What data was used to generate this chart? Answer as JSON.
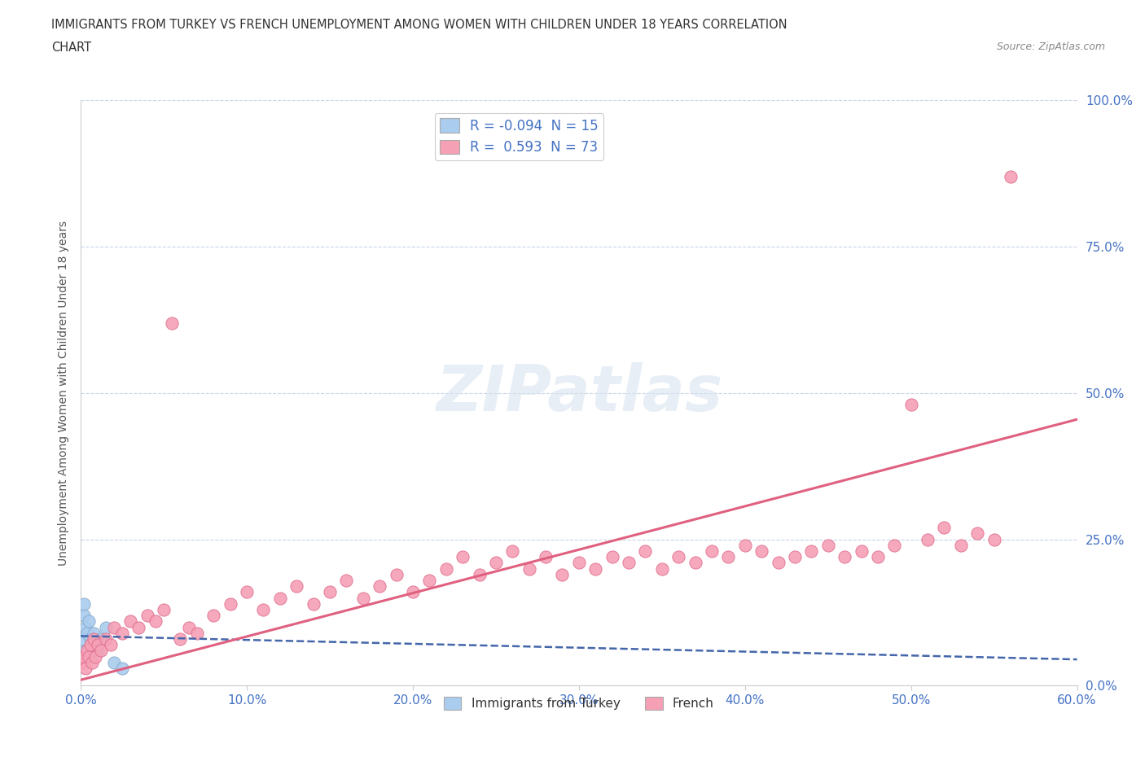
{
  "title_line1": "IMMIGRANTS FROM TURKEY VS FRENCH UNEMPLOYMENT AMONG WOMEN WITH CHILDREN UNDER 18 YEARS CORRELATION",
  "title_line2": "CHART",
  "source": "Source: ZipAtlas.com",
  "ylabel": "Unemployment Among Women with Children Under 18 years",
  "xlim": [
    0.0,
    0.6
  ],
  "ylim": [
    0.0,
    1.0
  ],
  "xticks": [
    0.0,
    0.1,
    0.2,
    0.3,
    0.4,
    0.5,
    0.6
  ],
  "yticks": [
    0.0,
    0.25,
    0.5,
    0.75,
    1.0
  ],
  "xtick_labels": [
    "0.0%",
    "10.0%",
    "20.0%",
    "30.0%",
    "40.0%",
    "50.0%",
    "60.0%"
  ],
  "ytick_labels": [
    "0.0%",
    "25.0%",
    "50.0%",
    "75.0%",
    "100.0%"
  ],
  "turkey": {
    "name": "Immigrants from Turkey",
    "color": "#aaccee",
    "edge_color": "#88aacc",
    "R": -0.094,
    "N": 15,
    "line_color": "#4466aa",
    "line_style": "--",
    "x": [
      0.001,
      0.002,
      0.002,
      0.003,
      0.003,
      0.004,
      0.005,
      0.006,
      0.007,
      0.008,
      0.01,
      0.012,
      0.015,
      0.02,
      0.025
    ],
    "y": [
      0.08,
      0.12,
      0.14,
      0.1,
      0.06,
      0.09,
      0.11,
      0.08,
      0.07,
      0.09,
      0.06,
      0.08,
      0.1,
      0.04,
      0.03
    ]
  },
  "french": {
    "name": "French",
    "color": "#f5a0b5",
    "edge_color": "#e07090",
    "R": 0.593,
    "N": 73,
    "line_color": "#e06080",
    "line_style": "-",
    "x": [
      0.001,
      0.002,
      0.003,
      0.004,
      0.005,
      0.006,
      0.007,
      0.008,
      0.009,
      0.01,
      0.012,
      0.015,
      0.018,
      0.02,
      0.025,
      0.03,
      0.035,
      0.04,
      0.045,
      0.05,
      0.055,
      0.06,
      0.065,
      0.07,
      0.08,
      0.09,
      0.1,
      0.11,
      0.12,
      0.13,
      0.14,
      0.15,
      0.16,
      0.17,
      0.18,
      0.19,
      0.2,
      0.21,
      0.22,
      0.23,
      0.24,
      0.25,
      0.26,
      0.27,
      0.28,
      0.29,
      0.3,
      0.31,
      0.32,
      0.33,
      0.34,
      0.35,
      0.36,
      0.37,
      0.38,
      0.39,
      0.4,
      0.41,
      0.42,
      0.43,
      0.44,
      0.45,
      0.46,
      0.47,
      0.48,
      0.49,
      0.5,
      0.51,
      0.52,
      0.53,
      0.54,
      0.55,
      0.56
    ],
    "y": [
      0.04,
      0.05,
      0.03,
      0.06,
      0.05,
      0.07,
      0.04,
      0.08,
      0.05,
      0.07,
      0.06,
      0.08,
      0.07,
      0.1,
      0.09,
      0.11,
      0.1,
      0.12,
      0.11,
      0.13,
      0.62,
      0.08,
      0.1,
      0.09,
      0.12,
      0.14,
      0.16,
      0.13,
      0.15,
      0.17,
      0.14,
      0.16,
      0.18,
      0.15,
      0.17,
      0.19,
      0.16,
      0.18,
      0.2,
      0.22,
      0.19,
      0.21,
      0.23,
      0.2,
      0.22,
      0.19,
      0.21,
      0.2,
      0.22,
      0.21,
      0.23,
      0.2,
      0.22,
      0.21,
      0.23,
      0.22,
      0.24,
      0.23,
      0.21,
      0.22,
      0.23,
      0.24,
      0.22,
      0.23,
      0.22,
      0.24,
      0.48,
      0.25,
      0.27,
      0.24,
      0.26,
      0.25,
      0.87
    ]
  },
  "legend_colors": [
    "#aaccee",
    "#f5a0b5"
  ],
  "legend_r_labels": [
    "R = -0.094  N = 15",
    "R =  0.593  N = 73"
  ],
  "background_color": "#ffffff",
  "grid_color": "#c8d4e8",
  "title_color": "#333333",
  "tick_color": "#4472c4",
  "watermark": "ZIPatlas"
}
